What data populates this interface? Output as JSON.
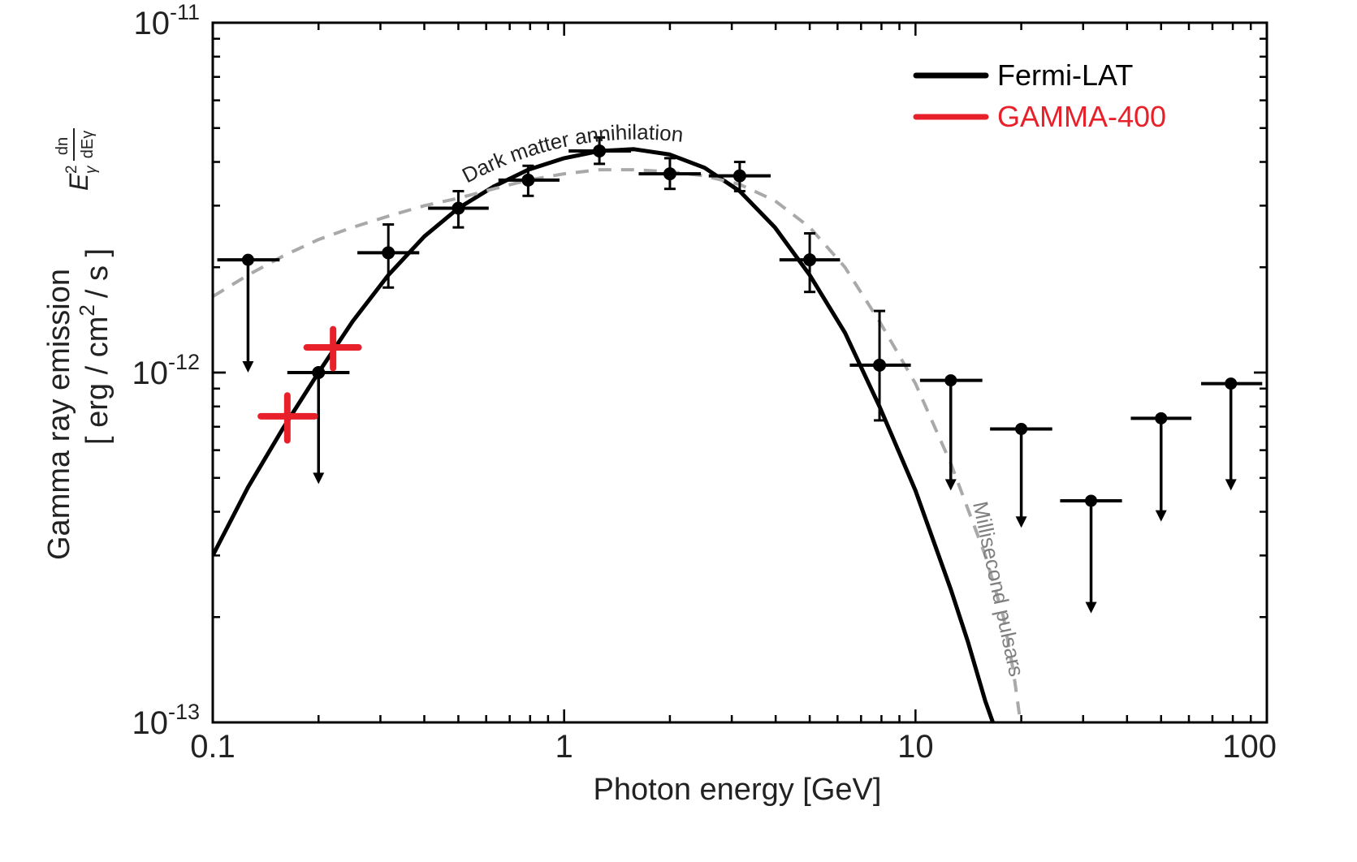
{
  "chart_data": {
    "type": "scatter",
    "x_scale": "log",
    "y_scale": "log",
    "xlim": [
      0.1,
      100
    ],
    "ylim": [
      1e-13,
      1e-11
    ],
    "xticks": [
      {
        "value": 0.1,
        "label": "0.1"
      },
      {
        "value": 1,
        "label": "1"
      },
      {
        "value": 10,
        "label": "10"
      },
      {
        "value": 100,
        "label": "100"
      }
    ],
    "yticks": [
      {
        "value": 1e-11,
        "base": "10",
        "exp": "-11"
      },
      {
        "value": 1e-12,
        "base": "10",
        "exp": "-12"
      },
      {
        "value": 1e-13,
        "base": "10",
        "exp": "-13"
      }
    ],
    "xlabel": "Photon energy [GeV]",
    "ylabel": {
      "line1": "Gamma ray emission",
      "line2_prefix": "[ erg / cm",
      "line2_sup": "2",
      "line2_suffix": "/ s ]",
      "formula": "Eγ² dn/dEγ"
    },
    "legend": {
      "position": "top-right",
      "items": [
        {
          "label": "Fermi-LAT",
          "color": "#000000"
        },
        {
          "label": "GAMMA-400",
          "color": "#e8202a"
        }
      ]
    },
    "series": [
      {
        "name": "Fermi-LAT",
        "color": "#000000",
        "points": [
          {
            "x": 0.2,
            "y": 1e-12,
            "xerr": [
              0.163,
              0.245
            ],
            "yerr": null
          },
          {
            "x": 0.316,
            "y": 2.2e-12,
            "xerr": [
              0.258,
              0.387
            ],
            "yerr": [
              1.75e-12,
              2.65e-12
            ]
          },
          {
            "x": 0.5,
            "y": 2.95e-12,
            "xerr": [
              0.41,
              0.61
            ],
            "yerr": [
              2.6e-12,
              3.3e-12
            ]
          },
          {
            "x": 0.79,
            "y": 3.55e-12,
            "xerr": [
              0.65,
              0.97
            ],
            "yerr": [
              3.2e-12,
              3.9e-12
            ]
          },
          {
            "x": 1.26,
            "y": 4.3e-12,
            "xerr": [
              1.03,
              1.55
            ],
            "yerr": [
              3.95e-12,
              4.7e-12
            ]
          },
          {
            "x": 2.0,
            "y": 3.7e-12,
            "xerr": [
              1.63,
              2.45
            ],
            "yerr": [
              3.35e-12,
              4.1e-12
            ]
          },
          {
            "x": 3.16,
            "y": 3.65e-12,
            "xerr": [
              2.58,
              3.87
            ],
            "yerr": [
              3.3e-12,
              4e-12
            ]
          },
          {
            "x": 5.0,
            "y": 2.1e-12,
            "xerr": [
              4.1,
              6.1
            ],
            "yerr": [
              1.7e-12,
              2.5e-12
            ]
          },
          {
            "x": 7.9,
            "y": 1.05e-12,
            "xerr": [
              6.5,
              9.7
            ],
            "yerr": [
              7.3e-13,
              1.5e-12
            ]
          }
        ],
        "upper_limits": [
          {
            "x": 0.126,
            "y": 2.1e-12,
            "xerr": [
              0.103,
              0.155
            ],
            "arrow_to": 1e-12
          },
          {
            "x": 0.2,
            "y": 1e-12,
            "xerr": null,
            "arrow_to": 4.8e-13
          },
          {
            "x": 12.6,
            "y": 9.5e-13,
            "xerr": [
              10.3,
              15.5
            ],
            "arrow_to": 4.6e-13
          },
          {
            "x": 20.0,
            "y": 6.9e-13,
            "xerr": [
              16.3,
              24.5
            ],
            "arrow_to": 3.6e-13
          },
          {
            "x": 31.6,
            "y": 4.3e-13,
            "xerr": [
              25.8,
              38.7
            ],
            "arrow_to": 2.05e-13
          },
          {
            "x": 50.0,
            "y": 7.4e-13,
            "xerr": [
              41.0,
              61.0
            ],
            "arrow_to": 3.75e-13
          },
          {
            "x": 79.0,
            "y": 9.3e-13,
            "xerr": [
              65.0,
              97.0
            ],
            "arrow_to": 4.6e-13
          }
        ]
      },
      {
        "name": "GAMMA-400",
        "color": "#e8202a",
        "points": [
          {
            "x": 0.163,
            "y": 7.5e-13,
            "xerr": [
              0.137,
              0.195
            ],
            "yerr": [
              6.4e-13,
              8.6e-13
            ]
          },
          {
            "x": 0.22,
            "y": 1.18e-12,
            "xerr": [
              0.185,
              0.26
            ],
            "yerr": [
              1.03e-12,
              1.33e-12
            ]
          }
        ]
      }
    ],
    "curves": [
      {
        "name": "Dark matter annihilation",
        "style": "solid",
        "color": "#000000",
        "points": [
          [
            0.1,
            3e-13
          ],
          [
            0.126,
            4.7e-13
          ],
          [
            0.158,
            6.9e-13
          ],
          [
            0.2,
            1e-12
          ],
          [
            0.25,
            1.4e-12
          ],
          [
            0.316,
            1.9e-12
          ],
          [
            0.4,
            2.45e-12
          ],
          [
            0.5,
            2.95e-12
          ],
          [
            0.63,
            3.4e-12
          ],
          [
            0.79,
            3.8e-12
          ],
          [
            1.0,
            4.1e-12
          ],
          [
            1.26,
            4.3e-12
          ],
          [
            1.58,
            4.35e-12
          ],
          [
            2.0,
            4.2e-12
          ],
          [
            2.51,
            3.85e-12
          ],
          [
            3.16,
            3.3e-12
          ],
          [
            3.98,
            2.6e-12
          ],
          [
            5.0,
            1.9e-12
          ],
          [
            6.3,
            1.3e-12
          ],
          [
            7.9,
            8e-13
          ],
          [
            10.0,
            4.6e-13
          ],
          [
            12.6,
            2.4e-13
          ],
          [
            14.1,
            1.7e-13
          ],
          [
            15.8,
            1.15e-13
          ],
          [
            16.6,
            1e-13
          ]
        ]
      },
      {
        "name": "Millisecond pulsars",
        "style": "dashed",
        "color": "#a9a9a9",
        "points": [
          [
            0.1,
            1.65e-12
          ],
          [
            0.126,
            1.9e-12
          ],
          [
            0.158,
            2.15e-12
          ],
          [
            0.2,
            2.4e-12
          ],
          [
            0.25,
            2.6e-12
          ],
          [
            0.316,
            2.8e-12
          ],
          [
            0.4,
            3e-12
          ],
          [
            0.5,
            3.15e-12
          ],
          [
            0.63,
            3.35e-12
          ],
          [
            0.79,
            3.55e-12
          ],
          [
            1.0,
            3.7e-12
          ],
          [
            1.26,
            3.8e-12
          ],
          [
            1.58,
            3.8e-12
          ],
          [
            2.0,
            3.75e-12
          ],
          [
            2.51,
            3.65e-12
          ],
          [
            3.16,
            3.45e-12
          ],
          [
            3.98,
            3.1e-12
          ],
          [
            5.0,
            2.6e-12
          ],
          [
            6.3,
            2e-12
          ],
          [
            7.9,
            1.4e-12
          ],
          [
            10.0,
            9.3e-13
          ],
          [
            12.6,
            5.5e-13
          ],
          [
            15.8,
            3e-13
          ],
          [
            17.8,
            2e-13
          ],
          [
            19.0,
            1.4e-13
          ],
          [
            19.9,
            1e-13
          ]
        ]
      }
    ],
    "annotations": [
      {
        "text": "Dark matter annihilation",
        "color": "#222222",
        "rotate": -12
      },
      {
        "text": "Millisecond pulsars",
        "color": "#808080",
        "rotate": 78
      }
    ]
  }
}
